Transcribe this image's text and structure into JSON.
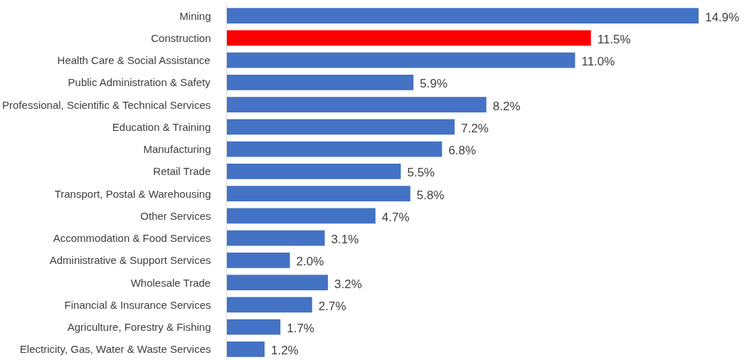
{
  "chart_data": {
    "type": "bar",
    "orientation": "horizontal",
    "categories": [
      "Mining",
      "Construction",
      "Health Care & Social Assistance",
      "Public Administration & Safety",
      "Professional, Scientific & Technical Services",
      "Education & Training",
      "Manufacturing",
      "Retail Trade",
      "Transport, Postal & Warehousing",
      "Other Services",
      "Accommodation & Food Services",
      "Administrative & Support Services",
      "Wholesale Trade",
      "Financial & Insurance Services",
      "Agriculture, Forestry & Fishing",
      "Electricity, Gas, Water & Waste Services"
    ],
    "values": [
      14.9,
      11.5,
      11.0,
      5.9,
      8.2,
      7.2,
      6.8,
      5.5,
      5.8,
      4.7,
      3.1,
      2.0,
      3.2,
      2.7,
      1.7,
      1.2
    ],
    "value_labels": [
      "14.9%",
      "11.5%",
      "11.0%",
      "5.9%",
      "8.2%",
      "7.2%",
      "6.8%",
      "5.5%",
      "5.8%",
      "4.7%",
      "3.1%",
      "2.0%",
      "3.2%",
      "2.7%",
      "1.7%",
      "1.2%"
    ],
    "colors": [
      "#4472c4",
      "#ff0000",
      "#4472c4",
      "#4472c4",
      "#4472c4",
      "#4472c4",
      "#4472c4",
      "#4472c4",
      "#4472c4",
      "#4472c4",
      "#4472c4",
      "#4472c4",
      "#4472c4",
      "#4472c4",
      "#4472c4",
      "#4472c4"
    ],
    "grid": false
  }
}
